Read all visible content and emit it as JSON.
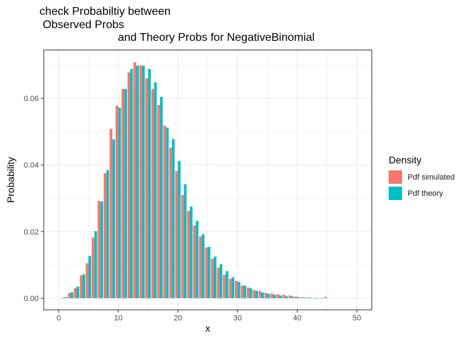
{
  "chart_data": {
    "type": "bar",
    "title": "check Probabiltiy between\n Observed Probs\n                         and Theory Probs for NegativeBinomial",
    "xlabel": "x",
    "ylabel": "Probability",
    "xlim": [
      -2.5,
      52.5
    ],
    "ylim": [
      -0.0035,
      0.0745
    ],
    "x_ticks": [
      0,
      10,
      20,
      30,
      40,
      50
    ],
    "y_ticks": [
      0.0,
      0.02,
      0.04,
      0.06
    ],
    "y_tick_labels": [
      "0.00",
      "0.02",
      "0.04",
      "0.06"
    ],
    "grid": true,
    "legend": {
      "title": "Density",
      "position": "right"
    },
    "x": [
      1,
      2,
      3,
      4,
      5,
      6,
      7,
      8,
      9,
      10,
      11,
      12,
      13,
      14,
      15,
      16,
      17,
      18,
      19,
      20,
      21,
      22,
      23,
      24,
      25,
      26,
      27,
      28,
      29,
      30,
      31,
      32,
      33,
      34,
      35,
      36,
      37,
      38,
      39,
      40,
      41,
      42,
      43,
      44,
      45
    ],
    "series": [
      {
        "name": "Pdf simulated",
        "color": "#F8766D",
        "values": [
          0.0002,
          0.0015,
          0.003,
          0.0068,
          0.0105,
          0.0182,
          0.0292,
          0.0375,
          0.0508,
          0.0578,
          0.0628,
          0.0678,
          0.0708,
          0.0698,
          0.066,
          0.0628,
          0.058,
          0.0518,
          0.0452,
          0.0382,
          0.031,
          0.0262,
          0.0218,
          0.0185,
          0.0152,
          0.0118,
          0.0092,
          0.007,
          0.0058,
          0.0052,
          0.0038,
          0.0032,
          0.0024,
          0.0022,
          0.0016,
          0.0014,
          0.0012,
          0.001,
          0.0008,
          0.0005,
          0.0003,
          0.0002,
          0.0001,
          0.0,
          0.0004
        ]
      },
      {
        "name": "Pdf theory",
        "color": "#00BFC4",
        "values": [
          0.0003,
          0.0018,
          0.0035,
          0.0072,
          0.0127,
          0.0201,
          0.029,
          0.0385,
          0.0477,
          0.0572,
          0.0628,
          0.0688,
          0.0698,
          0.0698,
          0.0688,
          0.0648,
          0.0604,
          0.0512,
          0.0478,
          0.0412,
          0.0342,
          0.0275,
          0.0232,
          0.0192,
          0.0154,
          0.0125,
          0.0102,
          0.0081,
          0.0063,
          0.0049,
          0.0038,
          0.003,
          0.0022,
          0.0017,
          0.0013,
          0.001,
          0.0008,
          0.0006,
          0.0005,
          0.0003,
          0.0002,
          0.0002,
          0.0001,
          0.0001,
          0.0
        ]
      }
    ]
  }
}
